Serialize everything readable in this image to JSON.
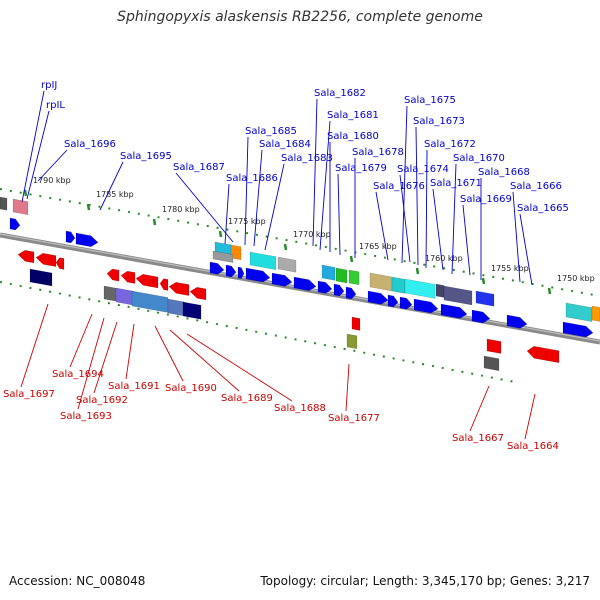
{
  "title": "Sphingopyxis alaskensis RB2256, complete genome",
  "footer": {
    "accession": "Accession: NC_008048",
    "summary": "Topology: circular; Length: 3,345,170 bp; Genes: 3,217"
  },
  "colors": {
    "forward_label": "#0000cc",
    "reverse_label": "#cc0000",
    "forward_gene": "#0000ee",
    "reverse_gene": "#ee0000",
    "ruler": "#2a8a2a",
    "backbone": "#808080"
  },
  "ticks": [
    {
      "label": "1790 kbp",
      "kbp": 1790
    },
    {
      "label": "1785 kbp",
      "kbp": 1785
    },
    {
      "label": "1780 kbp",
      "kbp": 1780
    },
    {
      "label": "1775 kbp",
      "kbp": 1775
    },
    {
      "label": "1770 kbp",
      "kbp": 1770
    },
    {
      "label": "1765 kbp",
      "kbp": 1765
    },
    {
      "label": "1760 kbp",
      "kbp": 1760
    },
    {
      "label": "1755 kbp",
      "kbp": 1755
    },
    {
      "label": "1750 kbp",
      "kbp": 1750
    }
  ],
  "forward_labels": [
    "rpIJ",
    "rpIL",
    "Sala_1696",
    "Sala_1695",
    "Sala_1687",
    "Sala_1686",
    "Sala_1685",
    "Sala_1684",
    "Sala_1683",
    "Sala_1682",
    "Sala_1681",
    "Sala_1680",
    "Sala_1679",
    "Sala_1678",
    "Sala_1676",
    "Sala_1675",
    "Sala_1674",
    "Sala_1673",
    "Sala_1672",
    "Sala_1671",
    "Sala_1670",
    "Sala_1669",
    "Sala_1668",
    "Sala_1666",
    "Sala_1665"
  ],
  "reverse_labels": [
    "Sala_1697",
    "Sala_1694",
    "Sala_1693",
    "Sala_1692",
    "Sala_1691",
    "Sala_1690",
    "Sala_1689",
    "Sala_1688",
    "Sala_1677",
    "Sala_1667",
    "Sala_1664"
  ]
}
